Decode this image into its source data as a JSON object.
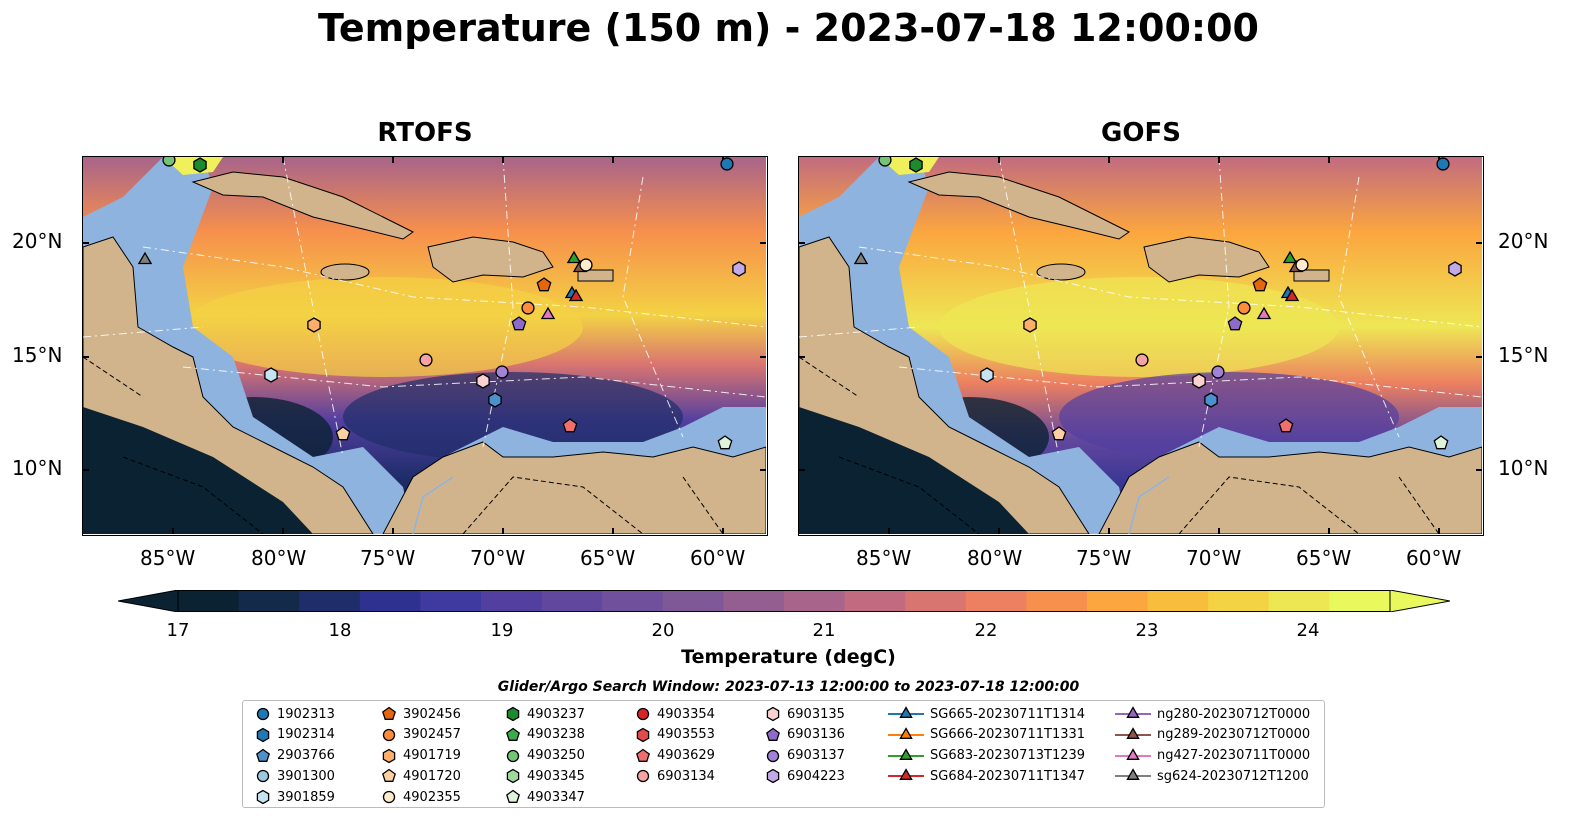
{
  "title": "Temperature (150 m) - 2023-07-18 12:00:00",
  "panels": [
    {
      "title": "RTOFS"
    },
    {
      "title": "GOFS"
    }
  ],
  "lon_ticks": [
    "85°W",
    "80°W",
    "75°W",
    "70°W",
    "65°W",
    "60°W"
  ],
  "lat_ticks": [
    "20°N",
    "15°N",
    "10°N"
  ],
  "colorbar": {
    "ticks": [
      "17",
      "18",
      "19",
      "20",
      "21",
      "22",
      "23",
      "24"
    ],
    "label": "Temperature (degC)",
    "colors": [
      "#0b2233",
      "#142a4a",
      "#1f2d6a",
      "#2e3190",
      "#3f3a9f",
      "#523fa0",
      "#62479e",
      "#70509c",
      "#7f5897",
      "#925f90",
      "#a8648a",
      "#c26b80",
      "#d97570",
      "#ec8060",
      "#f7904c",
      "#fba63f",
      "#f8bd3c",
      "#f3d244",
      "#eee754",
      "#e9f95d"
    ]
  },
  "search_window": "Glider/Argo Search Window: 2023-07-13 12:00:00 to 2023-07-18 12:00:00",
  "legend": [
    {
      "label": "1902313",
      "shape": "circle",
      "color": "#1f77b4"
    },
    {
      "label": "1902314",
      "shape": "hexagon",
      "color": "#1f77b4"
    },
    {
      "label": "2903766",
      "shape": "pentagon",
      "color": "#4c91cc"
    },
    {
      "label": "3901300",
      "shape": "circle",
      "color": "#9ecae1"
    },
    {
      "label": "3901859",
      "shape": "hexagon",
      "color": "#c6e3f2"
    },
    {
      "label": "3902456",
      "shape": "pentagon",
      "color": "#e6650d"
    },
    {
      "label": "3902457",
      "shape": "circle",
      "color": "#fd8d3c"
    },
    {
      "label": "4901719",
      "shape": "hexagon",
      "color": "#fdae6b"
    },
    {
      "label": "4901720",
      "shape": "pentagon",
      "color": "#fdd0a2"
    },
    {
      "label": "4902355",
      "shape": "circle",
      "color": "#feeacd"
    },
    {
      "label": "4903237",
      "shape": "hexagon",
      "color": "#1e8a2e"
    },
    {
      "label": "4903238",
      "shape": "pentagon",
      "color": "#3aab4a"
    },
    {
      "label": "4903250",
      "shape": "circle",
      "color": "#74c476"
    },
    {
      "label": "4903345",
      "shape": "hexagon",
      "color": "#a1d99b"
    },
    {
      "label": "4903347",
      "shape": "pentagon",
      "color": "#dff3da"
    },
    {
      "label": "4903354",
      "shape": "circle",
      "color": "#d62728"
    },
    {
      "label": "4903553",
      "shape": "hexagon",
      "color": "#e34a4a"
    },
    {
      "label": "4903629",
      "shape": "pentagon",
      "color": "#f06e6e"
    },
    {
      "label": "6903134",
      "shape": "circle",
      "color": "#f5a3a3"
    },
    {
      "label": "6903135",
      "shape": "hexagon",
      "color": "#fbd0d0"
    },
    {
      "label": "6903136",
      "shape": "pentagon",
      "color": "#8e6bcb"
    },
    {
      "label": "6903137",
      "shape": "circle",
      "color": "#a182d6"
    },
    {
      "label": "6904223",
      "shape": "hexagon",
      "color": "#c4a9e8"
    },
    {
      "label": "SG665-20230711T1314",
      "shape": "triangle",
      "color": "#1f77b4"
    },
    {
      "label": "SG666-20230711T1331",
      "shape": "triangle",
      "color": "#ff7f0e"
    },
    {
      "label": "SG683-20230713T1239",
      "shape": "triangle",
      "color": "#2ca02c"
    },
    {
      "label": "SG684-20230711T1347",
      "shape": "triangle",
      "color": "#d62728"
    },
    {
      "label": "ng280-20230712T0000",
      "shape": "triangle",
      "color": "#9467bd"
    },
    {
      "label": "ng289-20230712T0000",
      "shape": "triangle",
      "color": "#8c564b"
    },
    {
      "label": "ng427-20230711T0000",
      "shape": "triangle",
      "color": "#e377c2"
    },
    {
      "label": "sg624-20230712T1200",
      "shape": "triangle",
      "color": "#7f7f7f"
    }
  ],
  "colors": {
    "land": "#d2b48c",
    "shallow": "#8fb3df",
    "deep": "#0b2233"
  }
}
